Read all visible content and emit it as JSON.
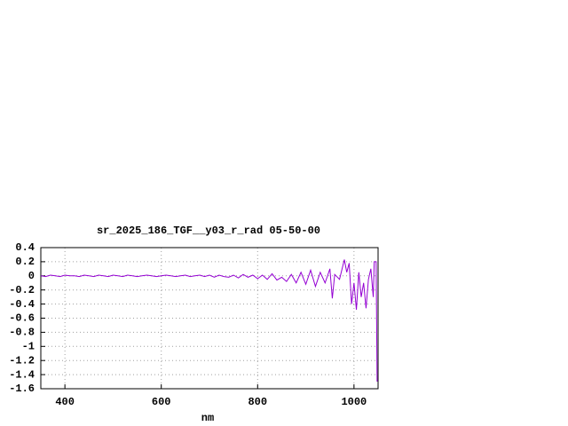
{
  "chart_data": {
    "type": "line",
    "title": "sr_2025_186_TGF__y03_r_rad 05-50-00",
    "x_label": "nm",
    "xlim": [
      350,
      1050
    ],
    "ylim": [
      -1.6,
      0.4
    ],
    "xticks": [
      400,
      600,
      800,
      1000
    ],
    "yticks": [
      0.4,
      0.2,
      0,
      -0.2,
      -0.4,
      -0.6,
      -0.8,
      -1,
      -1.2,
      -1.4,
      -1.6
    ],
    "grid": true,
    "series": [
      {
        "color": "#9400d3",
        "x": [
          350,
          360,
          370,
          380,
          390,
          400,
          410,
          420,
          430,
          440,
          450,
          460,
          470,
          480,
          490,
          500,
          510,
          520,
          530,
          540,
          550,
          560,
          570,
          580,
          590,
          600,
          610,
          620,
          630,
          640,
          650,
          660,
          670,
          680,
          690,
          700,
          710,
          720,
          730,
          740,
          750,
          760,
          770,
          780,
          790,
          800,
          810,
          820,
          830,
          840,
          850,
          860,
          870,
          880,
          890,
          900,
          910,
          920,
          930,
          940,
          950,
          955,
          960,
          970,
          980,
          985,
          990,
          995,
          1000,
          1005,
          1010,
          1015,
          1020,
          1025,
          1030,
          1035,
          1040,
          1042,
          1046,
          1048
        ],
        "values": [
          0,
          -0.01,
          0.01,
          0,
          -0.01,
          0.01,
          0,
          0,
          -0.01,
          0.01,
          0,
          -0.01,
          0.01,
          0,
          -0.01,
          0.01,
          0,
          -0.01,
          0.01,
          0,
          -0.01,
          0,
          0.01,
          0,
          -0.01,
          0,
          0.01,
          0,
          -0.01,
          0,
          0.01,
          -0.01,
          0,
          0.01,
          -0.01,
          0.01,
          -0.02,
          0.01,
          -0.01,
          -0.02,
          0.01,
          -0.03,
          0.02,
          -0.02,
          0.01,
          -0.04,
          0.01,
          -0.05,
          0.03,
          -0.06,
          -0.02,
          -0.08,
          0.02,
          -0.1,
          0.05,
          -0.12,
          0.08,
          -0.15,
          0.05,
          -0.1,
          0.1,
          -0.32,
          0.02,
          -0.05,
          0.23,
          0.05,
          0.18,
          -0.4,
          -0.1,
          -0.48,
          0.05,
          -0.3,
          -0.1,
          -0.46,
          -0.05,
          0.1,
          -0.3,
          0.2,
          0.2,
          -1.5
        ]
      }
    ]
  }
}
